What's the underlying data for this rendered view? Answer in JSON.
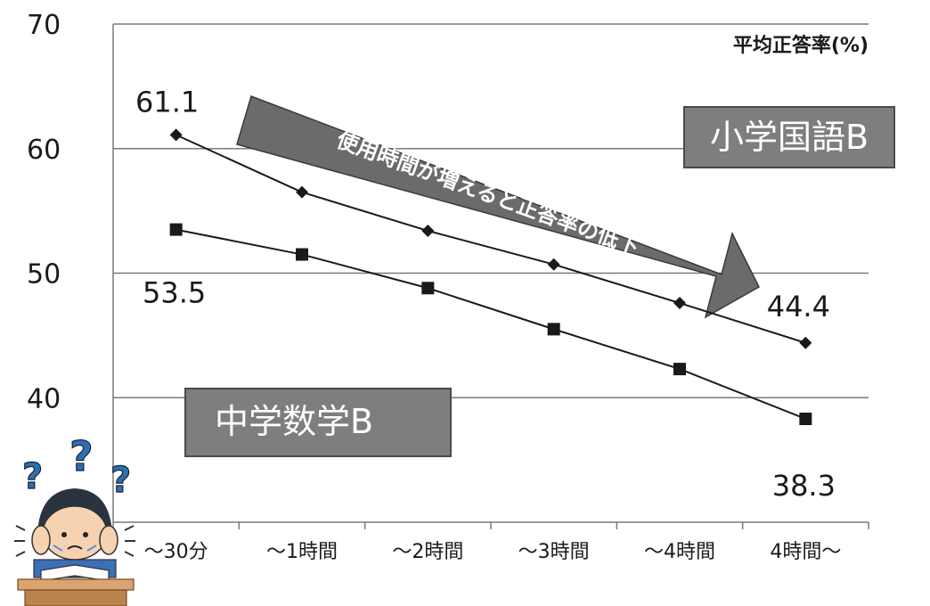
{
  "chart_data": {
    "type": "line",
    "ylabel": "平均正答率(%)",
    "categories": [
      "～30分",
      "～1時間",
      "～2時間",
      "～3時間",
      "～4時間",
      "4時間～"
    ],
    "ylim": [
      30,
      70
    ],
    "yticks": [
      40,
      50,
      60,
      70
    ],
    "grid": true,
    "series": [
      {
        "name": "小学国語B",
        "marker": "diamond",
        "values": [
          61.1,
          56.5,
          53.4,
          50.7,
          47.6,
          44.4
        ]
      },
      {
        "name": "中学数学B",
        "marker": "square",
        "values": [
          53.5,
          51.5,
          48.8,
          45.5,
          42.3,
          38.3
        ]
      }
    ],
    "data_labels": [
      {
        "series": 0,
        "index": 0,
        "text": "61.1"
      },
      {
        "series": 0,
        "index": 5,
        "text": "44.4"
      },
      {
        "series": 1,
        "index": 0,
        "text": "53.5"
      },
      {
        "series": 1,
        "index": 5,
        "text": "38.3"
      }
    ],
    "annotation": "使用時間が増えると正答率の低下",
    "colors": {
      "line": "#1a1a1a",
      "grid": "#7a7a7a",
      "box": "#7e7e7e",
      "box_border": "#4a4a4a",
      "arrow": "#6b6b6b"
    }
  },
  "illustration": {
    "icon": "confused-student-icon",
    "glyph": "?"
  }
}
